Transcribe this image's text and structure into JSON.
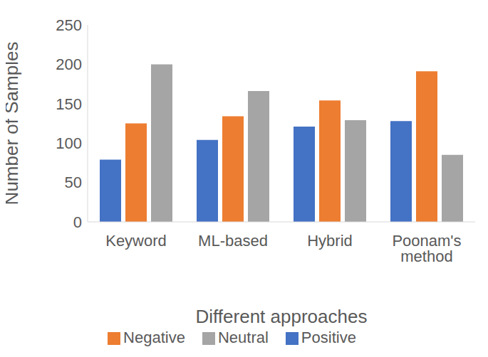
{
  "chart_data": {
    "type": "bar",
    "x_label": "Different approaches",
    "y_label": "Number of Samples",
    "categories": [
      "Keyword",
      "ML-based",
      "Hybrid",
      "Poonam's method"
    ],
    "series": [
      {
        "name": "Positive",
        "color": "#4472c4",
        "values": [
          79,
          104,
          121,
          128
        ]
      },
      {
        "name": "Negative",
        "color": "#ed7d31",
        "values": [
          125,
          134,
          154,
          191
        ]
      },
      {
        "name": "Neutral",
        "color": "#a5a5a5",
        "values": [
          200,
          166,
          129,
          85
        ]
      }
    ],
    "ylim": [
      0,
      250
    ],
    "yticks": [
      0,
      50,
      100,
      150,
      200,
      250
    ],
    "grid": false,
    "legend": "bottom"
  }
}
